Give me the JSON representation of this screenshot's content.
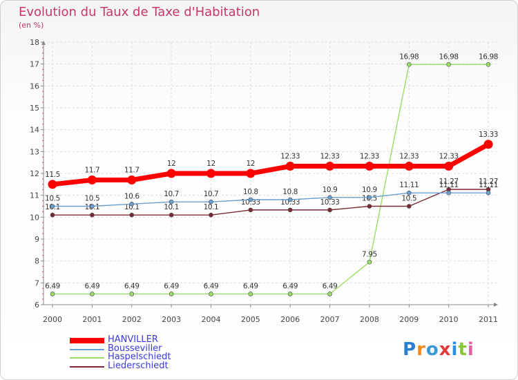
{
  "chart_data": {
    "type": "line",
    "title": "Evolution du Taux de Taxe d'Habitation",
    "subtitle": "(en %)",
    "xlabel": "",
    "ylabel": "",
    "ylim": [
      6,
      18
    ],
    "yticks": [
      6,
      7,
      8,
      9,
      10,
      11,
      12,
      13,
      14,
      15,
      16,
      17,
      18
    ],
    "categories": [
      "2000",
      "2001",
      "2002",
      "2003",
      "2004",
      "2005",
      "2006",
      "2007",
      "2008",
      "2009",
      "2010",
      "2011"
    ],
    "series": [
      {
        "name": "HANVILLER",
        "color": "#ff0000",
        "values": [
          11.5,
          11.7,
          11.7,
          12,
          12,
          12,
          12.33,
          12.33,
          12.33,
          12.33,
          12.33,
          13.33
        ],
        "labels": [
          "11.5",
          "11.7",
          "11.7",
          "12",
          "12",
          "12",
          "12.33",
          "12.33",
          "12.33",
          "12.33",
          "12.33",
          "13.33"
        ]
      },
      {
        "name": "Bousseviller",
        "color": "#6a9fd0",
        "values": [
          10.5,
          10.5,
          10.6,
          10.7,
          10.7,
          10.8,
          10.8,
          10.9,
          10.9,
          11.11,
          11.11,
          11.11
        ],
        "labels": [
          "10.5",
          "10.5",
          "10.6",
          "10.7",
          "10.7",
          "10.8",
          "10.8",
          "10.9",
          "10.9",
          "11.11",
          "11.11",
          "11.11"
        ]
      },
      {
        "name": "Haspelschiedt",
        "color": "#99dd66",
        "values": [
          6.49,
          6.49,
          6.49,
          6.49,
          6.49,
          6.49,
          6.49,
          6.49,
          7.95,
          16.98,
          16.98,
          16.98
        ],
        "labels": [
          "6.49",
          "6.49",
          "6.49",
          "6.49",
          "6.49",
          "6.49",
          "6.49",
          "6.49",
          "7.95",
          "16.98",
          "16.98",
          "16.98"
        ]
      },
      {
        "name": "Liederschiedt",
        "color": "#7a2a35",
        "values": [
          10.1,
          10.1,
          10.1,
          10.1,
          10.1,
          10.33,
          10.33,
          10.33,
          10.5,
          10.5,
          11.27,
          11.27
        ],
        "labels": [
          "10.1",
          "10.1",
          "10.1",
          "10.1",
          "10.1",
          "10.33",
          "10.33",
          "10.33",
          "10.5",
          "10.5",
          "11.27",
          "11.27"
        ]
      }
    ]
  },
  "brand": {
    "logo_text": "Proxiti"
  }
}
